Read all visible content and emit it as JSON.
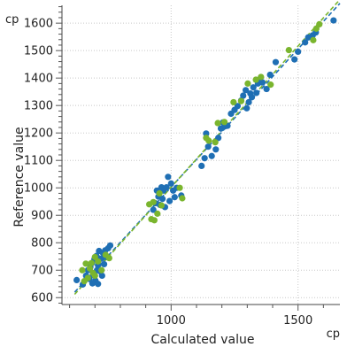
{
  "chart_data": {
    "type": "scatter",
    "title": "",
    "xlabel": "Calculated value",
    "ylabel": "Reference value",
    "x_unit": "cp",
    "y_unit": "cp",
    "xlim": [
      570,
      1665
    ],
    "ylim": [
      575,
      1665
    ],
    "x_ticks": [
      1000,
      1500
    ],
    "x_tick_labels": [
      "1000",
      "1500"
    ],
    "y_ticks": [
      600,
      700,
      800,
      900,
      1000,
      1100,
      1200,
      1300,
      1400,
      1500,
      1600
    ],
    "y_tick_labels": [
      "600",
      "700",
      "800",
      "900",
      "1000",
      "1100",
      "1200",
      "1300",
      "1400",
      "1500",
      "1600"
    ],
    "grid": true,
    "legend": "none",
    "series": [
      {
        "color": "#1f6fb4",
        "regression": {
          "x": [
            620,
            1665
          ],
          "y": [
            620,
            1672
          ]
        },
        "points": [
          [
            628,
            664
          ],
          [
            652,
            648
          ],
          [
            665,
            680
          ],
          [
            672,
            700
          ],
          [
            678,
            668
          ],
          [
            682,
            712
          ],
          [
            688,
            726
          ],
          [
            694,
            682
          ],
          [
            698,
            740
          ],
          [
            702,
            662
          ],
          [
            706,
            752
          ],
          [
            708,
            700
          ],
          [
            712,
            718
          ],
          [
            716,
            770
          ],
          [
            720,
            696
          ],
          [
            724,
            742
          ],
          [
            728,
            680
          ],
          [
            732,
            762
          ],
          [
            736,
            722
          ],
          [
            740,
            772
          ],
          [
            746,
            748
          ],
          [
            752,
            780
          ],
          [
            760,
            790
          ],
          [
            712,
            650
          ],
          [
            690,
            652
          ],
          [
            930,
            920
          ],
          [
            938,
            944
          ],
          [
            944,
            990
          ],
          [
            950,
            968
          ],
          [
            956,
            938
          ],
          [
            962,
            1002
          ],
          [
            966,
            960
          ],
          [
            970,
            990
          ],
          [
            976,
            930
          ],
          [
            982,
            1002
          ],
          [
            988,
            1040
          ],
          [
            994,
            952
          ],
          [
            1000,
            1016
          ],
          [
            1008,
            990
          ],
          [
            1014,
            966
          ],
          [
            1022,
            1000
          ],
          [
            1040,
            972
          ],
          [
            1120,
            1080
          ],
          [
            1132,
            1108
          ],
          [
            1138,
            1198
          ],
          [
            1146,
            1150
          ],
          [
            1160,
            1116
          ],
          [
            1176,
            1140
          ],
          [
            1186,
            1182
          ],
          [
            1196,
            1216
          ],
          [
            1204,
            1238
          ],
          [
            1212,
            1224
          ],
          [
            1222,
            1226
          ],
          [
            1236,
            1270
          ],
          [
            1250,
            1284
          ],
          [
            1262,
            1298
          ],
          [
            1276,
            1318
          ],
          [
            1284,
            1336
          ],
          [
            1294,
            1356
          ],
          [
            1298,
            1290
          ],
          [
            1306,
            1312
          ],
          [
            1312,
            1344
          ],
          [
            1318,
            1330
          ],
          [
            1324,
            1366
          ],
          [
            1336,
            1346
          ],
          [
            1342,
            1380
          ],
          [
            1350,
            1396
          ],
          [
            1360,
            1384
          ],
          [
            1376,
            1360
          ],
          [
            1390,
            1412
          ],
          [
            1412,
            1458
          ],
          [
            1486,
            1468
          ],
          [
            1500,
            1496
          ],
          [
            1528,
            1530
          ],
          [
            1540,
            1548
          ],
          [
            1558,
            1556
          ],
          [
            1570,
            1566
          ],
          [
            1640,
            1610
          ]
        ]
      },
      {
        "color": "#7ab52e",
        "regression": {
          "x": [
            620,
            1665
          ],
          "y": [
            612,
            1686
          ]
        },
        "points": [
          [
            650,
            700
          ],
          [
            658,
            660
          ],
          [
            664,
            724
          ],
          [
            672,
            672
          ],
          [
            680,
            706
          ],
          [
            686,
            726
          ],
          [
            692,
            690
          ],
          [
            700,
            748
          ],
          [
            712,
            732
          ],
          [
            726,
            700
          ],
          [
            742,
            756
          ],
          [
            756,
            744
          ],
          [
            700,
            680
          ],
          [
            914,
            940
          ],
          [
            922,
            886
          ],
          [
            930,
            948
          ],
          [
            934,
            882
          ],
          [
            946,
            906
          ],
          [
            954,
            980
          ],
          [
            962,
            936
          ],
          [
            1034,
            1000
          ],
          [
            1044,
            962
          ],
          [
            1138,
            1182
          ],
          [
            1148,
            1172
          ],
          [
            1174,
            1166
          ],
          [
            1184,
            1236
          ],
          [
            1210,
            1240
          ],
          [
            1246,
            1312
          ],
          [
            1276,
            1316
          ],
          [
            1302,
            1380
          ],
          [
            1334,
            1394
          ],
          [
            1354,
            1404
          ],
          [
            1392,
            1376
          ],
          [
            1464,
            1502
          ],
          [
            1560,
            1538
          ],
          [
            1572,
            1580
          ],
          [
            1584,
            1596
          ]
        ]
      }
    ]
  }
}
